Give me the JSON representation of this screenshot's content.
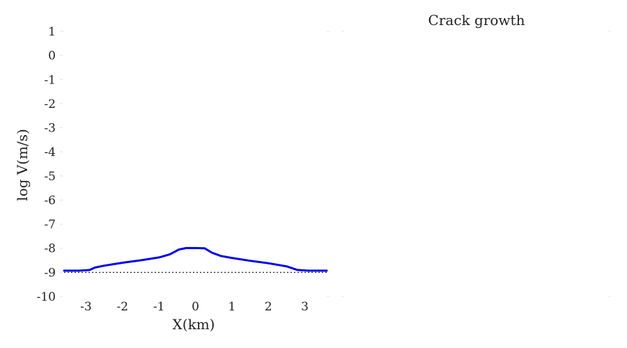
{
  "chart_data": [
    {
      "type": "line",
      "xlabel": "X(km)",
      "ylabel": "log V(m/s)",
      "xlim": [
        -3.6,
        3.6
      ],
      "ylim": [
        -10,
        1
      ],
      "x_ticks": [
        -3,
        -2,
        -1,
        0,
        1,
        2,
        3
      ],
      "y_ticks": [
        1,
        0,
        -1,
        -2,
        -3,
        -4,
        -5,
        -6,
        -7,
        -8,
        -9,
        -10
      ],
      "grid": false,
      "series": [
        {
          "color": "#0000ee",
          "points": [
            [
              -3.6,
              -8.93
            ],
            [
              -3.2,
              -8.93
            ],
            [
              -2.9,
              -8.9
            ],
            [
              -2.75,
              -8.8
            ],
            [
              -2.5,
              -8.72
            ],
            [
              -2.0,
              -8.6
            ],
            [
              -1.5,
              -8.5
            ],
            [
              -1.0,
              -8.38
            ],
            [
              -0.7,
              -8.25
            ],
            [
              -0.45,
              -8.05
            ],
            [
              -0.25,
              -7.99
            ],
            [
              0.0,
              -7.99
            ],
            [
              0.25,
              -8.0
            ],
            [
              0.45,
              -8.18
            ],
            [
              0.7,
              -8.32
            ],
            [
              1.0,
              -8.4
            ],
            [
              1.5,
              -8.52
            ],
            [
              2.0,
              -8.62
            ],
            [
              2.5,
              -8.75
            ],
            [
              2.8,
              -8.9
            ],
            [
              3.1,
              -8.93
            ],
            [
              3.6,
              -8.93
            ]
          ]
        },
        {
          "color": "#222222",
          "style": "dotted",
          "points": [
            [
              -3.6,
              -9.0
            ],
            [
              3.6,
              -9.0
            ]
          ]
        }
      ]
    },
    {
      "type": "line",
      "title": "Crack growth",
      "series": []
    }
  ]
}
